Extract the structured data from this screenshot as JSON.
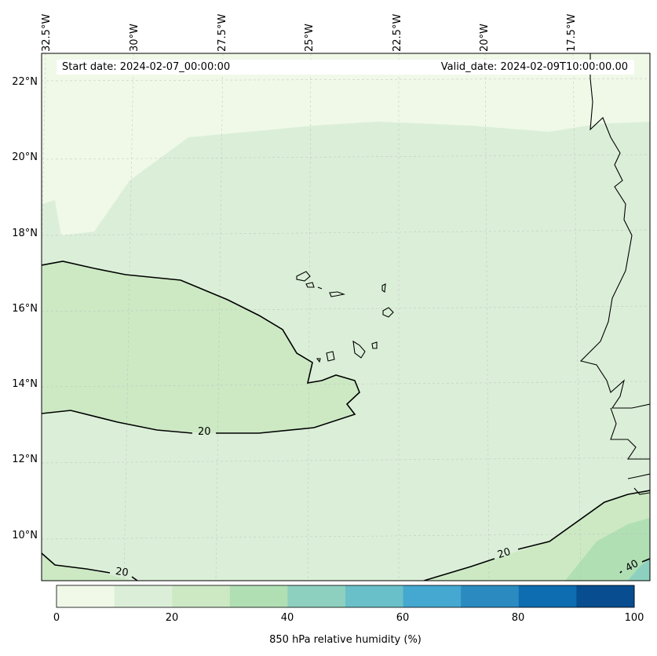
{
  "header": {
    "start_date": "Start date: 2024-02-07_00:00:00",
    "valid_date": "Valid_date: 2024-02-09T10:00:00.00"
  },
  "map": {
    "lon_labels": [
      "32.5°W",
      "30°W",
      "27.5°W",
      "25°W",
      "22.5°W",
      "20°W",
      "17.5°W"
    ],
    "lat_labels": [
      "22°N",
      "20°N",
      "18°N",
      "16°N",
      "14°N",
      "12°N",
      "10°N"
    ],
    "contour_labels": [
      "20",
      "20",
      "20",
      "40"
    ],
    "fill_colors": [
      "#f0f9e8",
      "#dbefd8",
      "#cce9c4",
      "#b0dfb4",
      "#8dd0bf"
    ]
  },
  "colorbar": {
    "colors": [
      "#f0f9e8",
      "#dbefd8",
      "#cce9c4",
      "#b0dfb4",
      "#8dd0bf",
      "#6ac0c8",
      "#45a8d0",
      "#2b8bc0",
      "#0e6cb0",
      "#084d8f"
    ],
    "ticks": [
      "0",
      "20",
      "40",
      "60",
      "80",
      "100"
    ],
    "label": "850 hPa relative humidity (%)"
  }
}
